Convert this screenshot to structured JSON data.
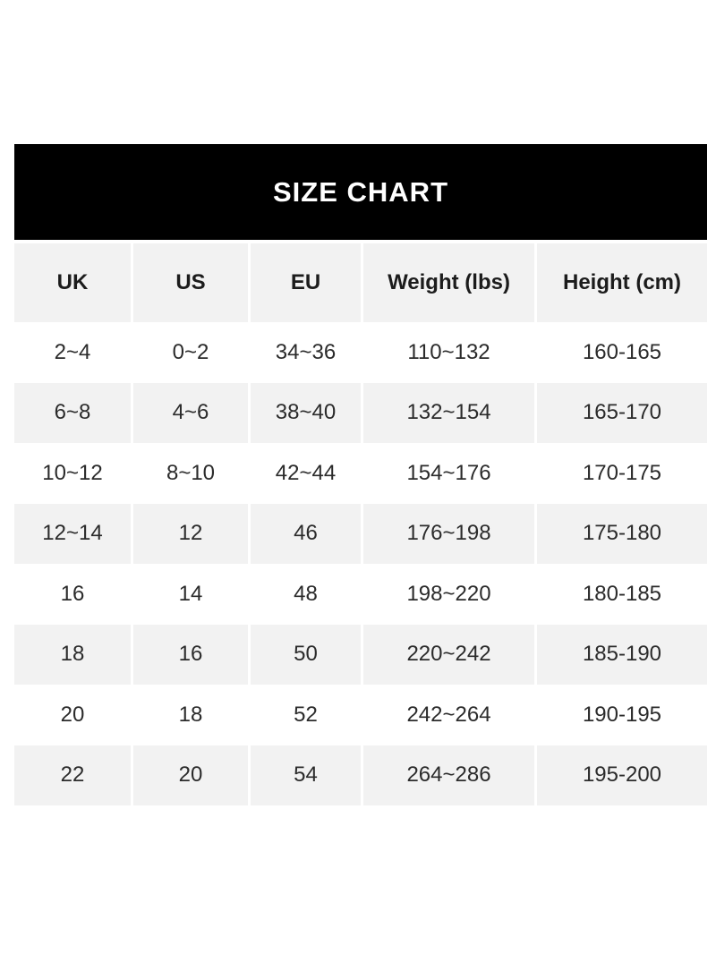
{
  "title": "SIZE CHART",
  "colors": {
    "title_bar_bg": "#000000",
    "title_text": "#ffffff",
    "header_row_bg": "#f2f2f2",
    "row_bg": "#ffffff",
    "row_alt_bg": "#f2f2f2",
    "cell_text": "#2b2b2b",
    "cell_divider": "#ffffff"
  },
  "chart_data": {
    "type": "table",
    "title": "SIZE CHART",
    "columns": [
      "UK",
      "US",
      "EU",
      "Weight (lbs)",
      "Height (cm)"
    ],
    "rows": [
      [
        "2~4",
        "0~2",
        "34~36",
        "110~132",
        "160-165"
      ],
      [
        "6~8",
        "4~6",
        "38~40",
        "132~154",
        "165-170"
      ],
      [
        "10~12",
        "8~10",
        "42~44",
        "154~176",
        "170-175"
      ],
      [
        "12~14",
        "12",
        "46",
        "176~198",
        "175-180"
      ],
      [
        "16",
        "14",
        "48",
        "198~220",
        "180-185"
      ],
      [
        "18",
        "16",
        "50",
        "220~242",
        "185-190"
      ],
      [
        "20",
        "18",
        "52",
        "242~264",
        "190-195"
      ],
      [
        "22",
        "20",
        "54",
        "264~286",
        "195-200"
      ]
    ]
  }
}
